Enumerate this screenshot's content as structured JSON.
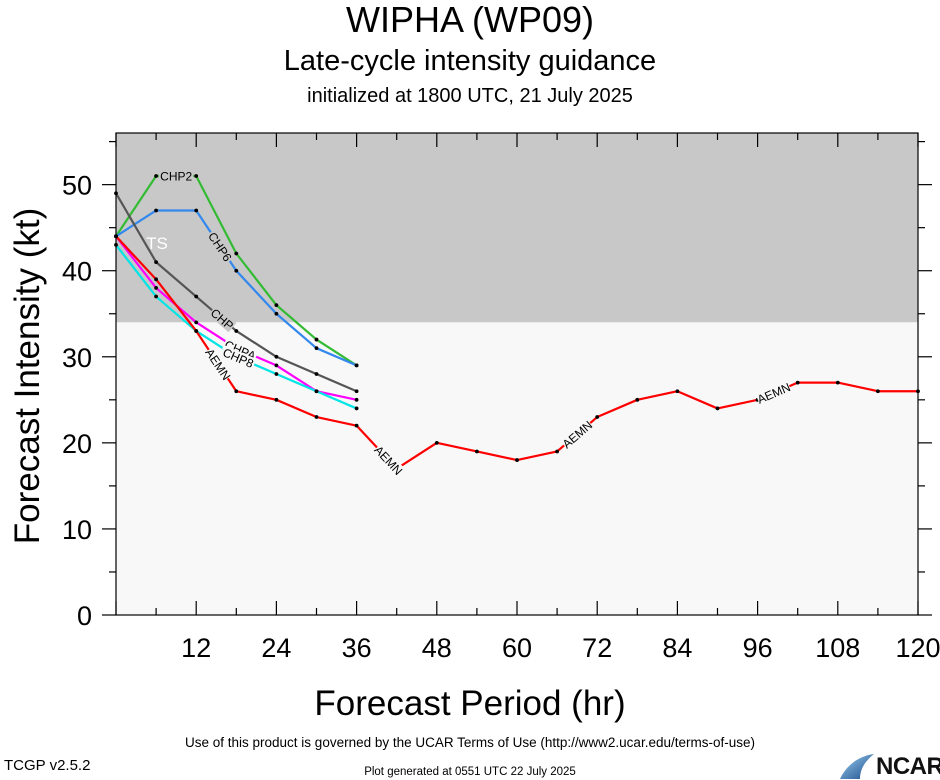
{
  "header": {
    "title": "WIPHA (WP09)",
    "subtitle": "Late-cycle intensity guidance",
    "initialized": "initialized at 1800 UTC, 21 July 2025"
  },
  "footer": {
    "terms": "Use of this product is governed by the UCAR Terms of Use (http://www2.ucar.edu/terms-of-use)",
    "generated": "Plot generated at 0551 UTC   22 July 2025",
    "version": "TCGP v2.5.2",
    "logo_text": "NCAR"
  },
  "chart_data": {
    "type": "line",
    "title": "WIPHA (WP09)",
    "xlabel": "Forecast Period (hr)",
    "ylabel": "Forecast Intensity (kt)",
    "xlim": [
      0,
      120
    ],
    "ylim": [
      0,
      56
    ],
    "xticks": [
      12,
      24,
      36,
      48,
      60,
      72,
      84,
      96,
      108,
      120
    ],
    "yticks": [
      0,
      10,
      20,
      30,
      40,
      50
    ],
    "grid": false,
    "bands": [
      {
        "label": "TS",
        "from": 34,
        "to": 56,
        "color": "#c8c8c8"
      },
      {
        "label": "",
        "from": 0,
        "to": 34,
        "color": "#f8f8f8"
      }
    ],
    "series": [
      {
        "name": "CHP2",
        "color": "#33bb33",
        "x": [
          0,
          6,
          12,
          18,
          24,
          30,
          36
        ],
        "y": [
          44,
          51,
          51,
          42,
          36,
          32,
          29
        ],
        "label_at": 1.5
      },
      {
        "name": "CHP6",
        "color": "#3388ee",
        "x": [
          0,
          6,
          12,
          18,
          24,
          30,
          36
        ],
        "y": [
          44,
          47,
          47,
          40,
          35,
          31,
          29
        ],
        "label_at": 2.6
      },
      {
        "name": "CHP",
        "color": "#555555",
        "x": [
          0,
          6,
          12,
          18,
          24,
          30,
          36
        ],
        "y": [
          49,
          41,
          37,
          33,
          30,
          28,
          26
        ],
        "label_at": 2.65
      },
      {
        "name": "CHPA",
        "color": "#ff00ff",
        "x": [
          0,
          6,
          12,
          18,
          24,
          30,
          36
        ],
        "y": [
          44,
          38,
          34,
          31,
          29,
          26,
          25
        ],
        "label_at": 3.1
      },
      {
        "name": "CHP8",
        "color": "#00e5e5",
        "x": [
          0,
          6,
          12,
          18,
          24,
          30,
          36
        ],
        "y": [
          43,
          37,
          33,
          30,
          28,
          26,
          24
        ],
        "label_at": 3.05
      },
      {
        "name": "AEMN",
        "color": "#ff0000",
        "x": [
          0,
          6,
          12,
          18,
          24,
          30,
          36,
          42,
          48,
          54,
          60,
          66,
          72,
          78,
          84,
          90,
          96,
          102,
          108,
          114,
          120
        ],
        "y": [
          44,
          39,
          33,
          26,
          25,
          23,
          22,
          17,
          20,
          19,
          18,
          19,
          23,
          25,
          26,
          24,
          25,
          27,
          27,
          26,
          26
        ],
        "label_at": [
          2.55,
          6.8,
          11.5,
          16.4
        ]
      }
    ]
  }
}
